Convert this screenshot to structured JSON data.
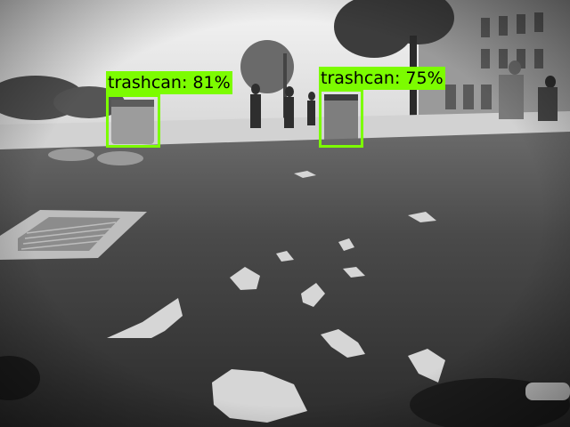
{
  "detections": [
    {
      "label": "trashcan: 81%",
      "class": "trashcan",
      "confidence": 0.81
    },
    {
      "label": "trashcan: 75%",
      "class": "trashcan",
      "confidence": 0.75
    }
  ],
  "colors": {
    "box": "#7cfc00",
    "label_text": "#000000"
  }
}
